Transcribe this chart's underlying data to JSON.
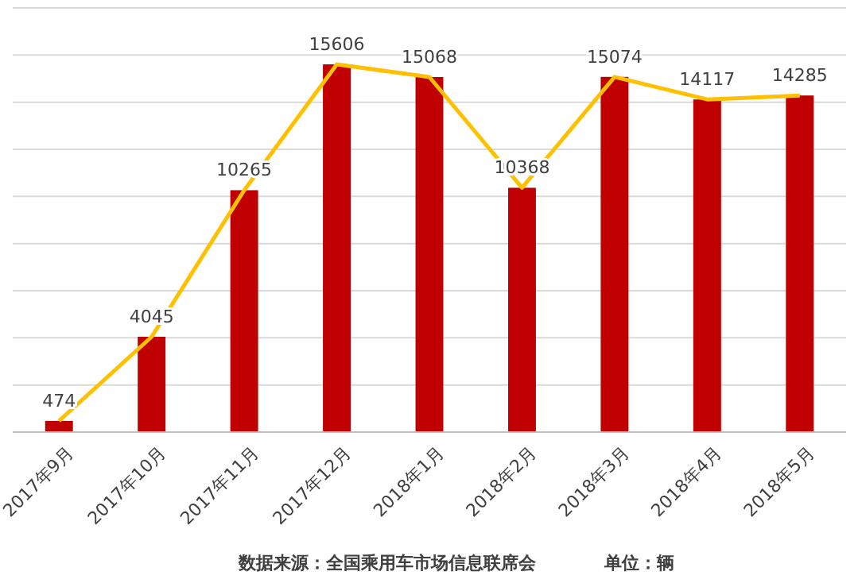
{
  "chart_data": {
    "type": "bar",
    "categories": [
      "2017年9月",
      "2017年10月",
      "2017年11月",
      "2017年12月",
      "2018年1月",
      "2018年2月",
      "2018年3月",
      "2018年4月",
      "2018年5月"
    ],
    "series": [
      {
        "color": "#c00000",
        "values": [
          474,
          4045,
          10265,
          15606,
          15068,
          10368,
          15074,
          14117,
          14285
        ]
      },
      {
        "type": "line",
        "color": "#ffc000",
        "values": [
          474,
          4045,
          10265,
          15606,
          15068,
          10368,
          15074,
          14117,
          14285
        ],
        "value_labels": [
          "474",
          "4045",
          "10265",
          "15606",
          "15068",
          "10368",
          "15074",
          "14117",
          "14285"
        ]
      }
    ],
    "ylim": [
      0,
      18000
    ],
    "grid": "y",
    "tick_labels": "x",
    "annotations": [
      "数据来源：全国乘用车市场信息联席会",
      "单位：辆"
    ]
  }
}
